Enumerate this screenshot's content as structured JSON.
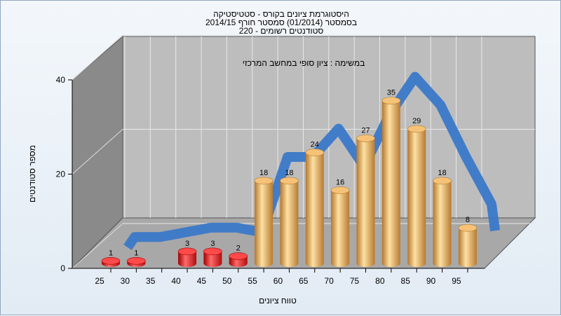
{
  "title_lines": [
    "היסטוגרמת ציונים בקורס - סטטיסטיקה",
    "בסמסטר  (01/2014)  סמסטר חורף 2014/15",
    "סטודנטים רשומים - 220"
  ],
  "colors": {
    "low_bar": "#e01818",
    "high_bar": "#e8a850",
    "curve": "#3a78c8",
    "back_wall": "#bdbdbd",
    "side_wall": "#8a8a8a",
    "floor": "#a8a8a8"
  },
  "chart_data": {
    "type": "bar",
    "title": "היסטוגרמת ציונים בקורס - סטטיסטיקה",
    "annotation": "במשימה : ציון סופי במחשב המרכזי",
    "xlabel": "טווח ציונים",
    "ylabel": "מספר סטודנטים",
    "x_ticks": [
      25,
      30,
      35,
      40,
      45,
      50,
      55,
      60,
      65,
      70,
      75,
      80,
      85,
      90,
      95
    ],
    "y_ticks": [
      0,
      20,
      40
    ],
    "ylim": [
      0,
      40
    ],
    "grid": true,
    "series": [
      {
        "x": [
          25,
          30,
          40,
          45,
          50,
          55,
          60,
          65,
          70,
          75,
          80,
          85,
          90,
          95
        ],
        "values": [
          1,
          1,
          3,
          3,
          2,
          18,
          18,
          24,
          16,
          27,
          35,
          29,
          18,
          8
        ]
      }
    ]
  }
}
